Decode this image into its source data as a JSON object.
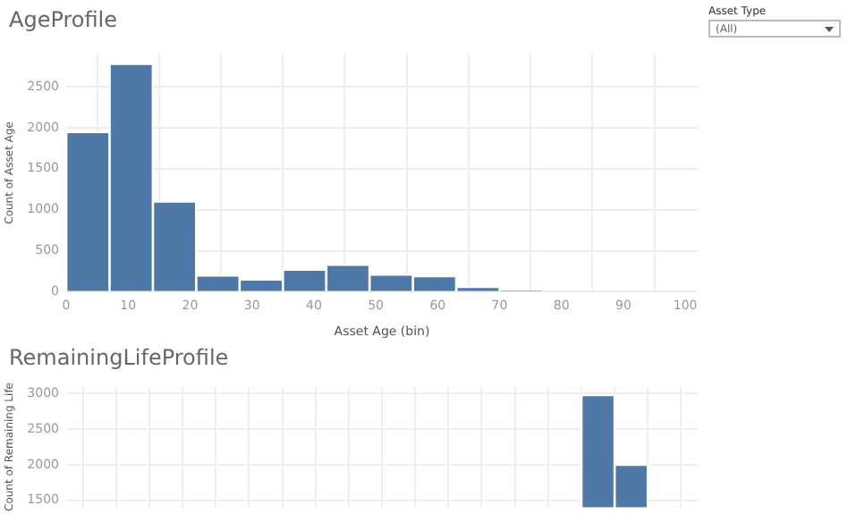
{
  "chart_data": [
    {
      "type": "histogram",
      "title": "AgeProfile",
      "xlabel": "Asset Age (bin)",
      "ylabel": "Count of Asset Age",
      "bins": [
        0,
        7,
        14,
        21,
        28,
        35,
        42,
        49,
        56,
        63,
        70,
        77
      ],
      "values": [
        1950,
        2780,
        1100,
        200,
        150,
        270,
        330,
        210,
        190,
        60,
        10
      ],
      "color": "#4e79a7",
      "xlim": [
        0,
        102
      ],
      "xticks": [
        0,
        10,
        20,
        30,
        40,
        50,
        60,
        70,
        80,
        90,
        100
      ],
      "ylim": [
        0,
        2900
      ],
      "yticks": [
        0,
        500,
        1000,
        1500,
        2000,
        2500
      ],
      "grid": true,
      "legend": false,
      "annotations": [
        "Asset Type",
        "(All)"
      ]
    },
    {
      "type": "bar",
      "title": "RemainingLifeProfile",
      "ylabel": "Count of Remaining Life",
      "categories": [
        null,
        null,
        null,
        null,
        null,
        null,
        null,
        null,
        null,
        null,
        null,
        null,
        null,
        null,
        null,
        null,
        null,
        null,
        null,
        null
      ],
      "values": [
        null,
        null,
        null,
        null,
        null,
        null,
        null,
        null,
        null,
        null,
        null,
        null,
        null,
        null,
        null,
        null,
        2980,
        2000,
        null,
        null
      ],
      "color": "#4e79a7",
      "ylim": [
        1400,
        3100
      ],
      "yticks": [
        1500,
        2000,
        2500,
        3000
      ],
      "grid": true,
      "legend": false,
      "tick_labels": "y"
    }
  ]
}
